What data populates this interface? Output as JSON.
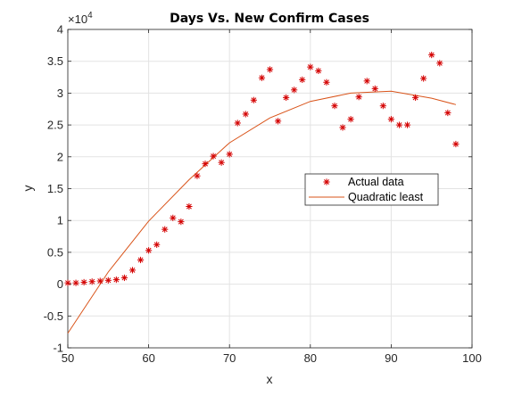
{
  "chart_data": {
    "type": "scatter",
    "title": "Days Vs. New Confirm Cases",
    "xlabel": "x",
    "ylabel": "y",
    "xlim": [
      50,
      100
    ],
    "ylim": [
      -1,
      4
    ],
    "y_exponent_label": "×10",
    "y_exponent_power": "4",
    "xticks": [
      "50",
      "60",
      "70",
      "80",
      "90",
      "100"
    ],
    "yticks": [
      "-1",
      "-0.5",
      "0",
      "0.5",
      "1",
      "1.5",
      "2",
      "2.5",
      "3",
      "3.5",
      "4"
    ],
    "grid": true,
    "legend_position": "right-middle",
    "series": [
      {
        "name": "Actual data",
        "kind": "scatter",
        "marker": "asterisk",
        "color": "#d40000",
        "x": [
          50,
          51,
          52,
          53,
          54,
          55,
          56,
          57,
          58,
          59,
          60,
          61,
          62,
          63,
          64,
          65,
          66,
          67,
          68,
          69,
          70,
          71,
          72,
          73,
          74,
          75,
          76,
          77,
          78,
          79,
          80,
          81,
          82,
          83,
          84,
          85,
          86,
          87,
          88,
          89,
          90,
          91,
          92,
          93,
          94,
          95,
          96,
          97,
          98
        ],
        "y": [
          0.02,
          0.02,
          0.03,
          0.04,
          0.05,
          0.06,
          0.07,
          0.1,
          0.22,
          0.38,
          0.53,
          0.62,
          0.86,
          1.04,
          0.98,
          1.22,
          1.7,
          1.89,
          2.01,
          1.91,
          2.04,
          2.53,
          2.67,
          2.89,
          3.24,
          3.37,
          2.56,
          2.93,
          3.05,
          3.21,
          3.41,
          3.35,
          3.17,
          2.8,
          2.46,
          2.59,
          2.94,
          3.19,
          3.07,
          2.8,
          2.59,
          2.5,
          2.5,
          2.93,
          3.23,
          3.6,
          3.47,
          2.69,
          2.2
        ]
      },
      {
        "name": "Quadratic least",
        "kind": "line",
        "color": "#d95319",
        "x": [
          50,
          55,
          60,
          65,
          70,
          75,
          80,
          85,
          90,
          95,
          98
        ],
        "y": [
          -0.77,
          0.19,
          0.99,
          1.64,
          2.22,
          2.61,
          2.87,
          3.0,
          3.03,
          2.92,
          2.82
        ]
      }
    ]
  }
}
